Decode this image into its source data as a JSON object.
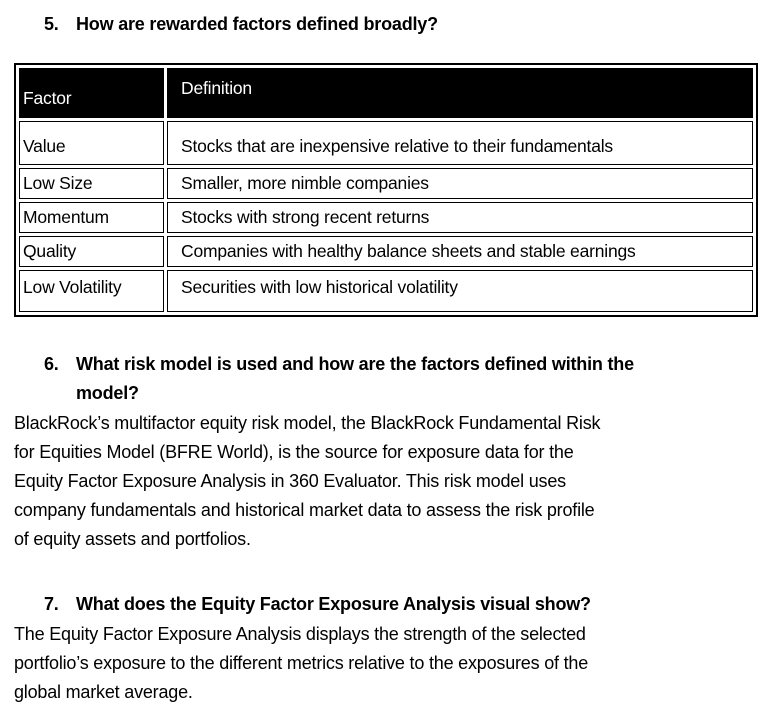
{
  "questions": [
    {
      "number": "5.",
      "lines": [
        "How are rewarded factors defined broadly?"
      ]
    },
    {
      "number": "6.",
      "lines": [
        "What risk model is used and how are the factors defined within the",
        "model?"
      ]
    },
    {
      "number": "7.",
      "lines": [
        "What does the Equity Factor Exposure Analysis visual show?"
      ]
    }
  ],
  "table": {
    "headers": [
      "Factor",
      "Definition"
    ],
    "rows": [
      {
        "factor": "Value",
        "definition": "Stocks that are inexpensive relative to their fundamentals"
      },
      {
        "factor": "Low Size",
        "definition": "Smaller, more nimble companies"
      },
      {
        "factor": "Momentum",
        "definition": "Stocks with strong recent returns"
      },
      {
        "factor": "Quality",
        "definition": "Companies with healthy balance sheets and stable earnings"
      },
      {
        "factor": "Low Volatility",
        "definition": "Securities with low historical volatility"
      }
    ]
  },
  "answers": {
    "q6_lines": [
      "BlackRock’s multifactor equity risk model, the BlackRock Fundamental Risk",
      "for Equities Model (BFRE World), is the source for exposure data for the",
      "Equity Factor Exposure Analysis in 360 Evaluator. This risk model uses",
      "company fundamentals and historical market data to assess the risk profile",
      "of equity assets and portfolios."
    ],
    "q7_lines": [
      "The Equity Factor Exposure Analysis displays the strength of the selected",
      "portfolio’s exposure to the different metrics relative to the exposures of the",
      "global market average."
    ]
  },
  "colors": {
    "text": "#000000",
    "table_header_bg": "#000000",
    "table_header_text": "#ffffff",
    "table_border": "#000000",
    "background": "#ffffff"
  }
}
